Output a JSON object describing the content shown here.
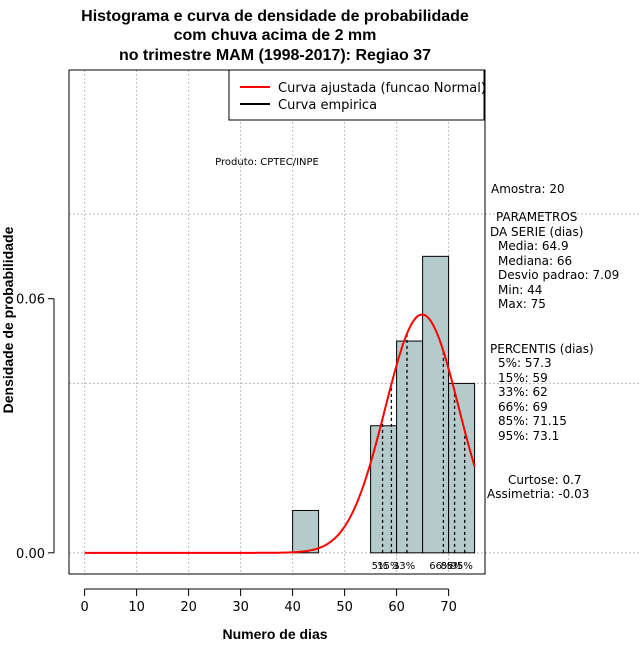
{
  "chart_data": {
    "type": "bar",
    "title_lines": [
      "Histograma e curva de densidade de probabilidade",
      "com chuva acima de 2 mm",
      "no trimestre MAM (1998-2017): Regiao 37"
    ],
    "xlabel": "Numero de dias",
    "ylabel": "Densidade de probabilidade",
    "xlim": [
      -3,
      77
    ],
    "ylim": [
      -0.005,
      0.114
    ],
    "x_ticks": [
      "0",
      "10",
      "20",
      "30",
      "40",
      "50",
      "60",
      "70"
    ],
    "y_ticks": [
      "0.00",
      "0.06"
    ],
    "grid": true,
    "bins": [
      {
        "from": 40,
        "to": 45,
        "density": 0.01
      },
      {
        "from": 45,
        "to": 50,
        "density": 0.0
      },
      {
        "from": 50,
        "to": 55,
        "density": 0.0
      },
      {
        "from": 55,
        "to": 60,
        "density": 0.03
      },
      {
        "from": 60,
        "to": 65,
        "density": 0.05
      },
      {
        "from": 65,
        "to": 70,
        "density": 0.07
      },
      {
        "from": 70,
        "to": 75,
        "density": 0.04
      }
    ],
    "normal_fit": {
      "mean": 64.9,
      "sd": 7.09,
      "x_from": 0,
      "x_to": 75
    },
    "percentile_lines": [
      57.3,
      59,
      62,
      69,
      71.15,
      73.1
    ],
    "percentile_labels": [
      "5%",
      "15%",
      "33%",
      "66%",
      "85%",
      "95%"
    ],
    "legend": [
      {
        "label": "Curva ajustada (funcao Normal)",
        "color": "#ff0000"
      },
      {
        "label": "Curva empirica",
        "color": "#000000"
      }
    ],
    "legend_position": "top-right",
    "colors": {
      "bar_fill": "#b5cbcb",
      "curve": "#ff0000",
      "grid": "#bdbdbd"
    }
  },
  "annotation": "Produto: CPTEC/INPE",
  "stats": {
    "amostra": "Amostra: 20",
    "parametros_header": [
      "PARAMETROS",
      "DA SERIE (dias)"
    ],
    "parametros": [
      "Media: 64.9",
      "Mediana: 66",
      "Desvio padrao: 7.09",
      "Min: 44",
      "Max: 75"
    ],
    "percentis_header": "PERCENTIS (dias)",
    "percentis": [
      "5%: 57.3",
      "15%: 59",
      "33%: 62",
      "66%: 69",
      "85%: 71.15",
      "95%: 73.1"
    ],
    "curtose": "Curtose: 0.7",
    "assimetria": "Assimetria: -0.03"
  }
}
